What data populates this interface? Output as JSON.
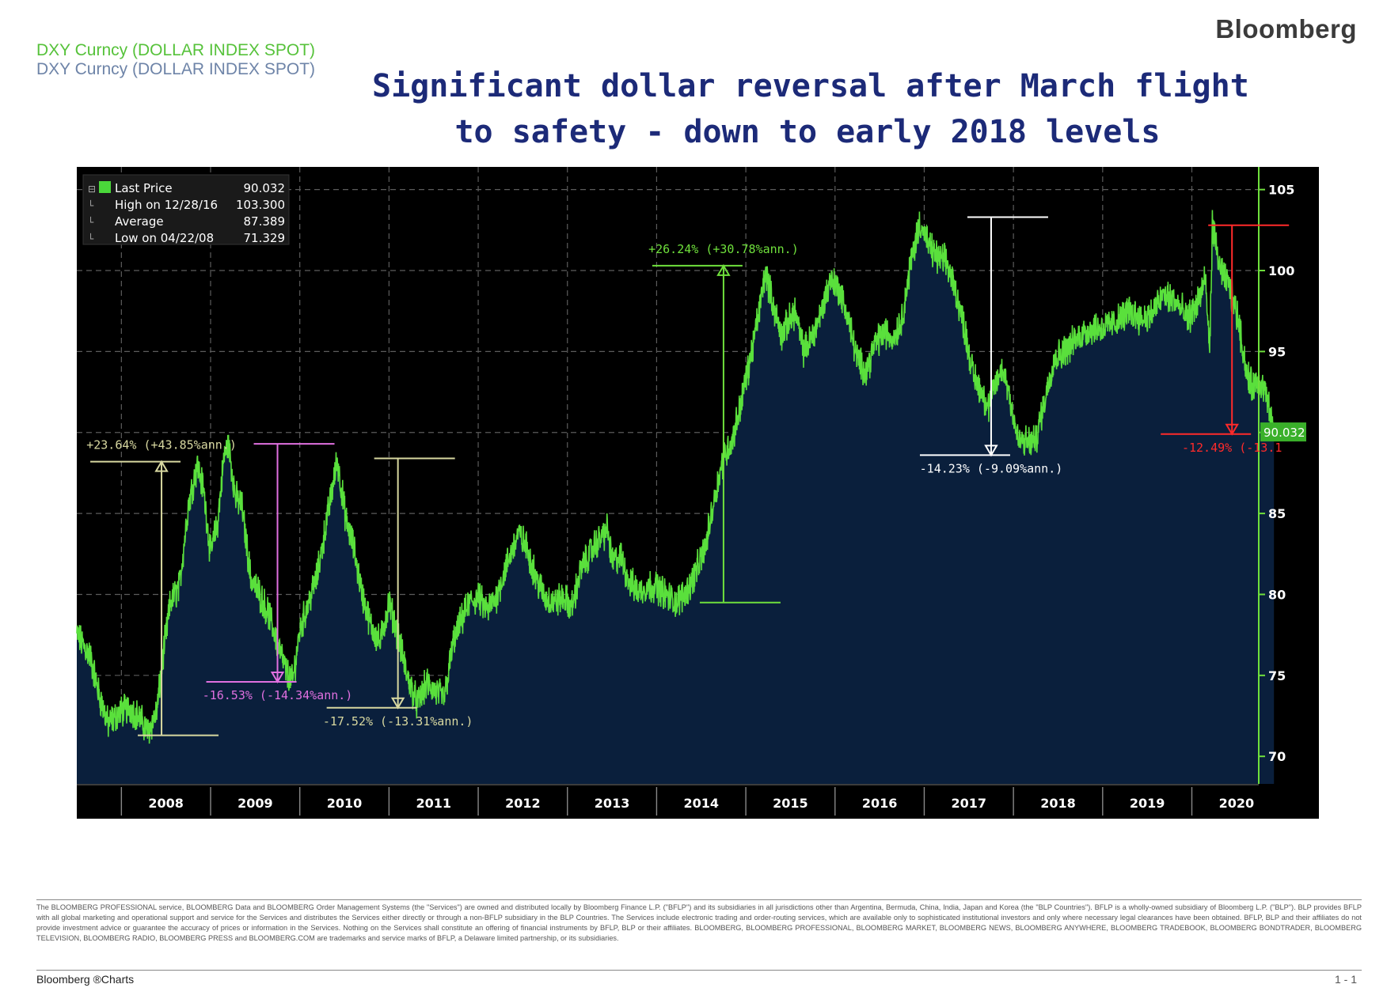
{
  "brand": "Bloomberg",
  "tickers": [
    "DXY Curncy (DOLLAR INDEX SPOT)",
    "DXY Curncy (DOLLAR INDEX SPOT)"
  ],
  "title_lines": [
    "Significant dollar reversal after March flight",
    "to safety - down to early 2018 levels"
  ],
  "legend": [
    {
      "label": "Last Price",
      "value": "90.032"
    },
    {
      "label": "High on 12/28/16",
      "value": "103.300"
    },
    {
      "label": "Average",
      "value": "87.389"
    },
    {
      "label": "Low on 04/22/08",
      "value": "71.329"
    }
  ],
  "colors": {
    "background": "#000000",
    "area": "#0a1f3c",
    "line": "#5ae03c",
    "grid": "#5c5c5c",
    "axis": "#6fe03c",
    "annotation_yellow": "#d8d8a0",
    "annotation_magenta": "#e070e0",
    "annotation_green": "#6fe03c",
    "annotation_white": "#ffffff",
    "annotation_red": "#ff2a2a"
  },
  "chart_data": {
    "type": "area",
    "title": "Significant dollar reversal after March flight to safety - down to early 2018 levels",
    "series_name": "DXY Curncy (DOLLAR INDEX SPOT)",
    "x_labels": [
      "2008",
      "2009",
      "2010",
      "2011",
      "2012",
      "2013",
      "2014",
      "2015",
      "2016",
      "2017",
      "2018",
      "2019",
      "2020"
    ],
    "x_range": [
      2007.5,
      2020.75
    ],
    "y_ticks": [
      70,
      75,
      80,
      85,
      90,
      95,
      100,
      105
    ],
    "ylim": [
      68.3,
      106.4
    ],
    "last_price_label": "90.032",
    "keypoints": [
      [
        2007.5,
        77.5
      ],
      [
        2007.65,
        76.2
      ],
      [
        2007.75,
        73.8
      ],
      [
        2007.85,
        72.0
      ],
      [
        2008.0,
        72.8
      ],
      [
        2008.1,
        73.0
      ],
      [
        2008.2,
        72.4
      ],
      [
        2008.3,
        71.5
      ],
      [
        2008.4,
        72.8
      ],
      [
        2008.45,
        75.5
      ],
      [
        2008.55,
        79.5
      ],
      [
        2008.65,
        80.5
      ],
      [
        2008.75,
        85.5
      ],
      [
        2008.85,
        88.0
      ],
      [
        2008.92,
        86.5
      ],
      [
        2009.0,
        82.5
      ],
      [
        2009.08,
        84.5
      ],
      [
        2009.15,
        88.5
      ],
      [
        2009.2,
        89.3
      ],
      [
        2009.28,
        86.0
      ],
      [
        2009.35,
        85.5
      ],
      [
        2009.45,
        81.0
      ],
      [
        2009.55,
        80.0
      ],
      [
        2009.65,
        78.8
      ],
      [
        2009.75,
        77.0
      ],
      [
        2009.85,
        75.2
      ],
      [
        2009.92,
        74.6
      ],
      [
        2010.0,
        77.8
      ],
      [
        2010.1,
        79.5
      ],
      [
        2010.2,
        81.3
      ],
      [
        2010.3,
        84.5
      ],
      [
        2010.42,
        88.3
      ],
      [
        2010.52,
        84.5
      ],
      [
        2010.6,
        83.0
      ],
      [
        2010.7,
        80.0
      ],
      [
        2010.8,
        78.0
      ],
      [
        2010.9,
        77.0
      ],
      [
        2011.0,
        79.5
      ],
      [
        2011.1,
        77.5
      ],
      [
        2011.2,
        75.0
      ],
      [
        2011.32,
        73.2
      ],
      [
        2011.42,
        74.5
      ],
      [
        2011.52,
        74.0
      ],
      [
        2011.62,
        73.6
      ],
      [
        2011.72,
        77.0
      ],
      [
        2011.8,
        78.2
      ],
      [
        2011.9,
        79.5
      ],
      [
        2012.0,
        79.8
      ],
      [
        2012.1,
        79.0
      ],
      [
        2012.2,
        79.8
      ],
      [
        2012.3,
        81.5
      ],
      [
        2012.45,
        83.8
      ],
      [
        2012.55,
        82.8
      ],
      [
        2012.65,
        81.0
      ],
      [
        2012.75,
        79.8
      ],
      [
        2012.85,
        79.5
      ],
      [
        2012.95,
        79.8
      ],
      [
        2013.05,
        79.2
      ],
      [
        2013.15,
        81.5
      ],
      [
        2013.3,
        83.0
      ],
      [
        2013.45,
        84.0
      ],
      [
        2013.5,
        82.0
      ],
      [
        2013.6,
        82.3
      ],
      [
        2013.7,
        80.7
      ],
      [
        2013.8,
        80.2
      ],
      [
        2013.9,
        80.5
      ],
      [
        2014.0,
        80.5
      ],
      [
        2014.1,
        80.0
      ],
      [
        2014.22,
        79.5
      ],
      [
        2014.35,
        80.3
      ],
      [
        2014.45,
        81.5
      ],
      [
        2014.55,
        83.0
      ],
      [
        2014.65,
        86.0
      ],
      [
        2014.75,
        88.5
      ],
      [
        2014.85,
        89.5
      ],
      [
        2014.95,
        92.0
      ],
      [
        2015.05,
        94.5
      ],
      [
        2015.15,
        97.5
      ],
      [
        2015.22,
        100.0
      ],
      [
        2015.3,
        98.0
      ],
      [
        2015.4,
        96.0
      ],
      [
        2015.55,
        97.5
      ],
      [
        2015.65,
        95.0
      ],
      [
        2015.75,
        96.0
      ],
      [
        2015.85,
        97.5
      ],
      [
        2015.95,
        99.5
      ],
      [
        2016.05,
        98.8
      ],
      [
        2016.15,
        97.0
      ],
      [
        2016.25,
        94.5
      ],
      [
        2016.35,
        93.8
      ],
      [
        2016.45,
        95.5
      ],
      [
        2016.55,
        96.2
      ],
      [
        2016.65,
        95.8
      ],
      [
        2016.75,
        97.0
      ],
      [
        2016.85,
        100.5
      ],
      [
        2016.95,
        103.0
      ],
      [
        2017.05,
        101.5
      ],
      [
        2017.15,
        100.8
      ],
      [
        2017.25,
        100.5
      ],
      [
        2017.35,
        98.8
      ],
      [
        2017.45,
        96.5
      ],
      [
        2017.55,
        93.5
      ],
      [
        2017.65,
        92.5
      ],
      [
        2017.72,
        91.5
      ],
      [
        2017.8,
        93.0
      ],
      [
        2017.88,
        94.0
      ],
      [
        2017.95,
        92.5
      ],
      [
        2018.05,
        89.5
      ],
      [
        2018.15,
        89.4
      ],
      [
        2018.25,
        89.5
      ],
      [
        2018.35,
        92.0
      ],
      [
        2018.45,
        94.5
      ],
      [
        2018.6,
        95.2
      ],
      [
        2018.75,
        96.0
      ],
      [
        2018.9,
        96.5
      ],
      [
        2019.0,
        96.4
      ],
      [
        2019.15,
        96.8
      ],
      [
        2019.3,
        97.5
      ],
      [
        2019.45,
        97.0
      ],
      [
        2019.55,
        97.3
      ],
      [
        2019.68,
        98.5
      ],
      [
        2019.8,
        98.2
      ],
      [
        2019.95,
        97.0
      ],
      [
        2020.05,
        97.8
      ],
      [
        2020.15,
        99.5
      ],
      [
        2020.2,
        95.0
      ],
      [
        2020.23,
        102.8
      ],
      [
        2020.32,
        100.0
      ],
      [
        2020.42,
        99.0
      ],
      [
        2020.52,
        97.0
      ],
      [
        2020.62,
        93.5
      ],
      [
        2020.68,
        92.8
      ],
      [
        2020.75,
        93.3
      ],
      [
        2020.82,
        92.5
      ],
      [
        2020.92,
        90.032
      ]
    ],
    "annotations": [
      {
        "text": "+23.64% (+43.85%ann.)",
        "color": "yellow",
        "x": 2008.45,
        "from": 71.3,
        "to": 88.2,
        "dir": "up"
      },
      {
        "text": "-16.53% (-14.34%ann.)",
        "color": "magenta",
        "x": 2009.75,
        "from": 89.3,
        "to": 74.6,
        "dir": "down"
      },
      {
        "text": "-17.52% (-13.31%ann.)",
        "color": "yellow",
        "x": 2011.1,
        "from": 88.4,
        "to": 73.0,
        "dir": "down"
      },
      {
        "text": "+26.24% (+30.78%ann.)",
        "color": "green",
        "x": 2014.75,
        "from": 79.5,
        "to": 100.3,
        "dir": "up"
      },
      {
        "text": "-14.23% (-9.09%ann.)",
        "color": "white",
        "x": 2017.75,
        "from": 103.3,
        "to": 88.6,
        "dir": "down"
      },
      {
        "text": "-12.49% (-13.1",
        "color": "red",
        "x": 2020.45,
        "from": 102.8,
        "to": 89.9,
        "dir": "down"
      }
    ]
  },
  "disclaimer": "The BLOOMBERG PROFESSIONAL service, BLOOMBERG Data and BLOOMBERG Order Management Systems (the \"Services\") are owned and distributed locally by Bloomberg Finance L.P. (\"BFLP\") and its subsidiaries in all jurisdictions other than Argentina, Bermuda, China, India, Japan and Korea (the \"BLP Countries\"). BFLP is a wholly-owned subsidiary of Bloomberg L.P. (\"BLP\"). BLP provides BFLP with all global marketing and operational support and service for the Services and distributes the Services either directly or through a non-BFLP subsidiary in the BLP Countries. The Services include electronic trading and order-routing services, which are available only to sophisticated institutional investors and only where necessary legal clearances have been obtained. BFLP, BLP and their affiliates do not provide investment advice or guarantee the accuracy of prices or information in the Services. Nothing on the Services shall constitute an offering of financial instruments by BFLP, BLP or their affiliates. BLOOMBERG, BLOOMBERG PROFESSIONAL, BLOOMBERG MARKET, BLOOMBERG NEWS, BLOOMBERG ANYWHERE, BLOOMBERG TRADEBOOK, BLOOMBERG BONDTRADER, BLOOMBERG TELEVISION, BLOOMBERG RADIO, BLOOMBERG PRESS and BLOOMBERG.COM are trademarks and service marks of BFLP, a Delaware limited partnership, or its subsidiaries.",
  "footer_brand": "Bloomberg ®Charts",
  "page_number": "1 - 1"
}
